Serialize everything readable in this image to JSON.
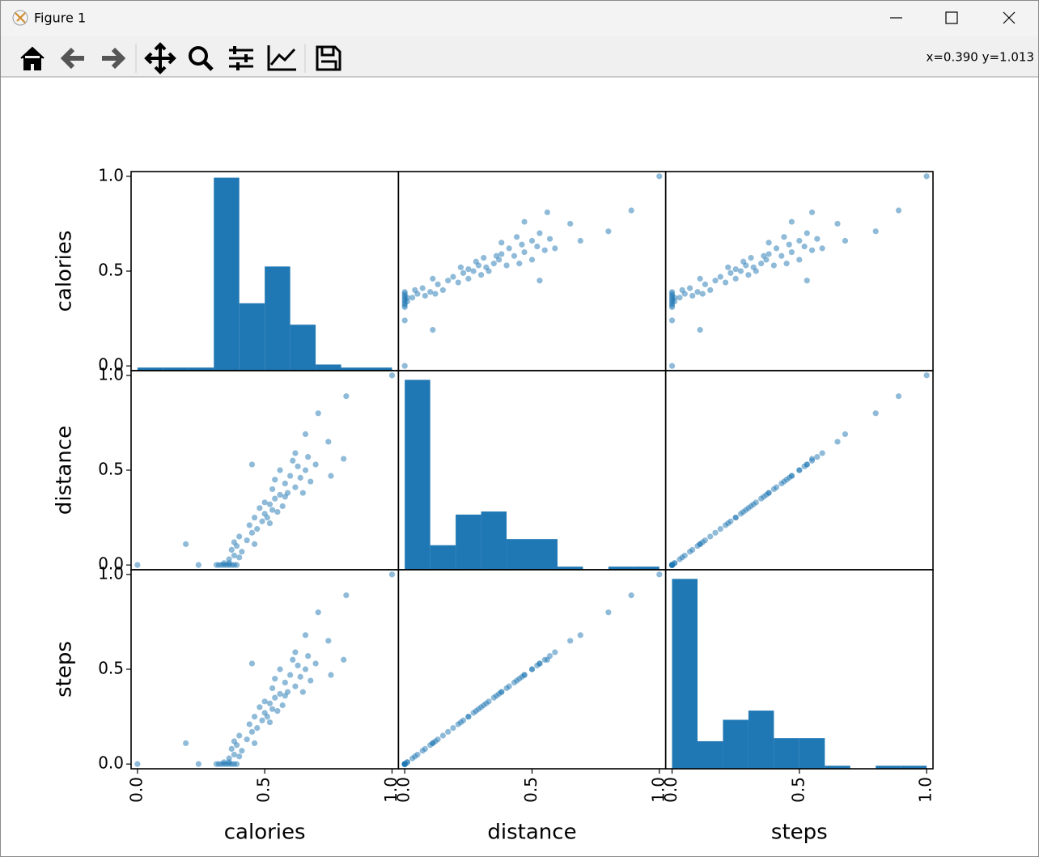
{
  "window": {
    "title": "Figure 1",
    "coords": "x=0.390 y=1.013"
  },
  "chart_data": {
    "type": "scatter_matrix",
    "variables": [
      "calories",
      "distance",
      "steps"
    ],
    "color": "#1f77b4",
    "lim": [
      -0.025,
      1.025
    ],
    "ticks": [
      {
        "value": 0,
        "label": "0.0"
      },
      {
        "value": 0.5,
        "label": "0.5"
      },
      {
        "value": 1,
        "label": "1.0"
      }
    ],
    "hist_ylim": [
      0,
      65
    ],
    "hist": [
      {
        "bins": [
          0,
          0.1,
          0.2,
          0.3,
          0.4,
          0.5,
          0.6,
          0.7,
          0.8,
          0.9,
          1.0
        ],
        "counts": [
          1,
          1,
          1,
          63,
          22,
          34,
          15,
          2,
          1,
          1
        ]
      },
      {
        "bins": [
          0,
          0.1,
          0.2,
          0.3,
          0.4,
          0.5,
          0.6,
          0.7,
          0.8,
          0.9,
          1.0
        ],
        "counts": [
          62,
          8,
          18,
          19,
          10,
          10,
          1,
          0,
          1,
          1
        ]
      },
      {
        "bins": [
          0,
          0.1,
          0.2,
          0.3,
          0.4,
          0.5,
          0.6,
          0.7,
          0.8,
          0.9,
          1.0
        ],
        "counts": [
          62,
          9,
          16,
          19,
          10,
          10,
          1,
          0,
          1,
          1
        ]
      }
    ],
    "data": [
      [
        0.0,
        0.0,
        0.0
      ],
      [
        0.19,
        0.11,
        0.11
      ],
      [
        0.24,
        0.0,
        0.0
      ],
      [
        1.0,
        1.0,
        1.0
      ],
      [
        0.82,
        0.89,
        0.89
      ],
      [
        0.71,
        0.8,
        0.8
      ],
      [
        0.81,
        0.56,
        0.55
      ],
      [
        0.75,
        0.65,
        0.65
      ],
      [
        0.66,
        0.69,
        0.68
      ],
      [
        0.76,
        0.47,
        0.47
      ],
      [
        0.31,
        0.0,
        0.0
      ],
      [
        0.32,
        0.0,
        0.0
      ],
      [
        0.33,
        0.0,
        0.0
      ],
      [
        0.34,
        0.0,
        0.0
      ],
      [
        0.35,
        0.0,
        0.0
      ],
      [
        0.36,
        0.0,
        0.0
      ],
      [
        0.37,
        0.0,
        0.0
      ],
      [
        0.38,
        0.0,
        0.0
      ],
      [
        0.39,
        0.0,
        0.0
      ],
      [
        0.36,
        0.01,
        0.01
      ],
      [
        0.34,
        0.01,
        0.01
      ],
      [
        0.36,
        0.03,
        0.03
      ],
      [
        0.38,
        0.05,
        0.05
      ],
      [
        0.37,
        0.08,
        0.08
      ],
      [
        0.39,
        0.1,
        0.1
      ],
      [
        0.4,
        0.04,
        0.04
      ],
      [
        0.41,
        0.07,
        0.07
      ],
      [
        0.38,
        0.12,
        0.12
      ],
      [
        0.4,
        0.15,
        0.15
      ],
      [
        0.43,
        0.13,
        0.13
      ],
      [
        0.45,
        0.17,
        0.17
      ],
      [
        0.46,
        0.11,
        0.11
      ],
      [
        0.44,
        0.21,
        0.21
      ],
      [
        0.47,
        0.19,
        0.19
      ],
      [
        0.49,
        0.23,
        0.23
      ],
      [
        0.46,
        0.25,
        0.25
      ],
      [
        0.5,
        0.27,
        0.27
      ],
      [
        0.48,
        0.3,
        0.3
      ],
      [
        0.51,
        0.25,
        0.25
      ],
      [
        0.52,
        0.32,
        0.32
      ],
      [
        0.53,
        0.29,
        0.29
      ],
      [
        0.54,
        0.35,
        0.35
      ],
      [
        0.5,
        0.33,
        0.33
      ],
      [
        0.55,
        0.28,
        0.28
      ],
      [
        0.56,
        0.37,
        0.37
      ],
      [
        0.53,
        0.4,
        0.4
      ],
      [
        0.57,
        0.31,
        0.31
      ],
      [
        0.58,
        0.43,
        0.43
      ],
      [
        0.54,
        0.45,
        0.45
      ],
      [
        0.59,
        0.38,
        0.38
      ],
      [
        0.6,
        0.47,
        0.47
      ],
      [
        0.56,
        0.5,
        0.5
      ],
      [
        0.62,
        0.41,
        0.41
      ],
      [
        0.61,
        0.55,
        0.55
      ],
      [
        0.63,
        0.52,
        0.52
      ],
      [
        0.64,
        0.46,
        0.46
      ],
      [
        0.62,
        0.59,
        0.59
      ],
      [
        0.66,
        0.5,
        0.5
      ],
      [
        0.67,
        0.57,
        0.57
      ],
      [
        0.68,
        0.44,
        0.44
      ],
      [
        0.65,
        0.38,
        0.38
      ],
      [
        0.45,
        0.53,
        0.53
      ],
      [
        0.7,
        0.53,
        0.53
      ],
      [
        0.58,
        0.36,
        0.36
      ],
      [
        0.52,
        0.22,
        0.22
      ]
    ]
  }
}
